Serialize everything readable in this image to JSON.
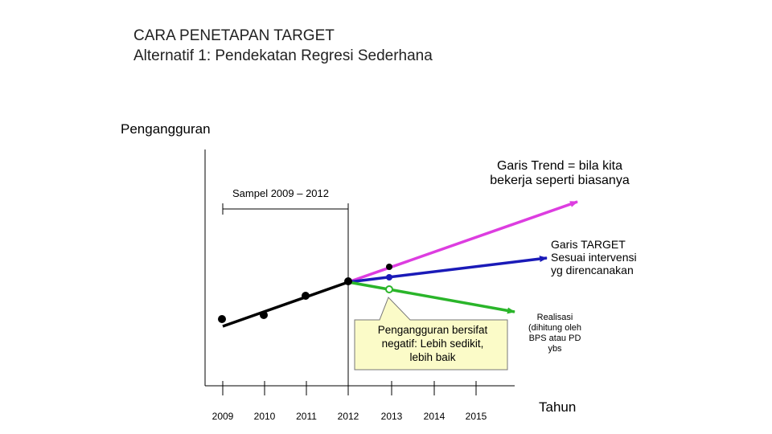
{
  "title": {
    "line1": "CARA PENETAPAN TARGET",
    "line2": "Alternatif 1: Pendekatan Regresi Sederhana"
  },
  "axis": {
    "y_label": "Pengangguran",
    "x_label": "Tahun",
    "years": [
      "2009",
      "2010",
      "2011",
      "2012",
      "2013",
      "2014",
      "2015"
    ]
  },
  "labels": {
    "sample": "Sampel 2009 – 2012",
    "trend_line1": "Garis Trend = bila kita",
    "trend_line2": "bekerja seperti biasanya",
    "target_line1": "Garis TARGET",
    "target_line2": "Sesuai intervensi",
    "target_line3": "yg direncanakan",
    "callout_line1": "Pengangguran bersifat",
    "callout_line2": "negatif: Lebih sedikit,",
    "callout_line3": "lebih baik",
    "realisasi_line1": "Realisasi",
    "realisasi_line2": "(dihitung oleh",
    "realisasi_line3": "BPS atau PD",
    "realisasi_line4": "ybs"
  },
  "colors": {
    "regression": "#000000",
    "trend": "#dd3de0",
    "target": "#1a1ab8",
    "decline": "#2ab52a",
    "callout_fill": "#fbfbc8"
  }
}
